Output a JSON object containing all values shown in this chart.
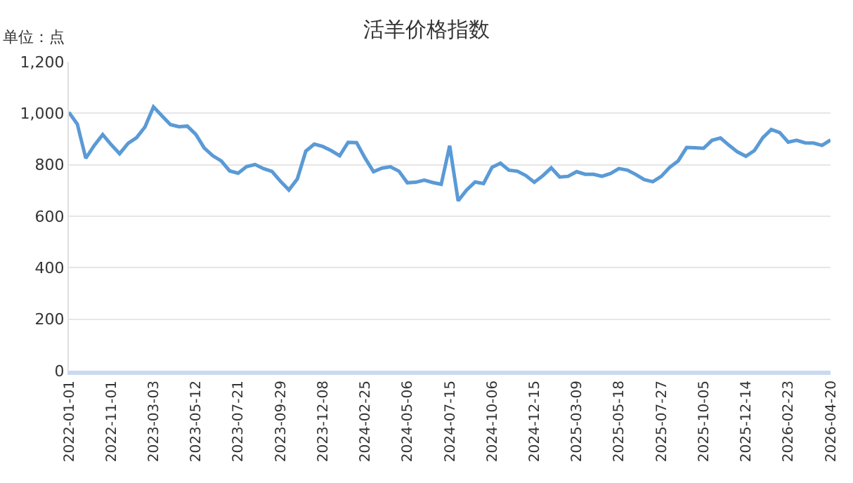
{
  "chart_data": {
    "type": "line",
    "title": "活羊价格指数",
    "annotations": [
      "单位：点"
    ],
    "categories": [
      "2022-01-01",
      null,
      null,
      null,
      null,
      "2022-11-01",
      null,
      null,
      null,
      null,
      "2023-03-03",
      null,
      null,
      null,
      null,
      "2023-05-12",
      null,
      null,
      null,
      null,
      "2023-07-21",
      null,
      null,
      null,
      null,
      "2023-09-29",
      null,
      null,
      null,
      null,
      "2023-12-08",
      null,
      null,
      null,
      null,
      "2024-02-25",
      null,
      null,
      null,
      null,
      "2024-05-06",
      null,
      null,
      null,
      null,
      "2024-07-15",
      null,
      null,
      null,
      null,
      "2024-10-06",
      null,
      null,
      null,
      null,
      "2024-12-15",
      null,
      null,
      null,
      null,
      "2025-03-09",
      null,
      null,
      null,
      null,
      "2025-05-18",
      null,
      null,
      null,
      null,
      "2025-07-27",
      null,
      null,
      null,
      null,
      "2025-10-05",
      null,
      null,
      null,
      null,
      "2025-12-14",
      null,
      null,
      null,
      null,
      "2026-02-23",
      null,
      null,
      null,
      null,
      "2026-04-20"
    ],
    "series": [
      {
        "color": "#5a9ad6",
        "values": [
          1004,
          958,
          825,
          875,
          917,
          878,
          843,
          883,
          905,
          947,
          1025,
          990,
          956,
          948,
          950,
          918,
          865,
          835,
          815,
          776,
          767,
          793,
          801,
          785,
          774,
          736,
          702,
          745,
          853,
          880,
          871,
          855,
          835,
          887,
          886,
          826,
          773,
          787,
          792,
          775,
          730,
          732,
          740,
          731,
          724,
          874,
          660,
          702,
          733,
          727,
          790,
          806,
          779,
          775,
          758,
          732,
          757,
          788,
          752,
          755,
          773,
          763,
          763,
          755,
          766,
          785,
          779,
          762,
          742,
          734,
          755,
          790,
          815,
          867,
          866,
          864,
          895,
          904,
          876,
          850,
          833,
          855,
          905,
          937,
          925,
          888,
          895,
          885,
          884,
          875,
          896
        ]
      }
    ],
    "ylim": [
      0,
      1200
    ],
    "yticks": [
      0,
      200,
      400,
      600,
      800,
      {
        "value": 1000,
        "label": "1,000"
      },
      {
        "value": 1200,
        "label": "1,200"
      }
    ],
    "grid": "y",
    "marker": "none",
    "line_style": "solid"
  }
}
